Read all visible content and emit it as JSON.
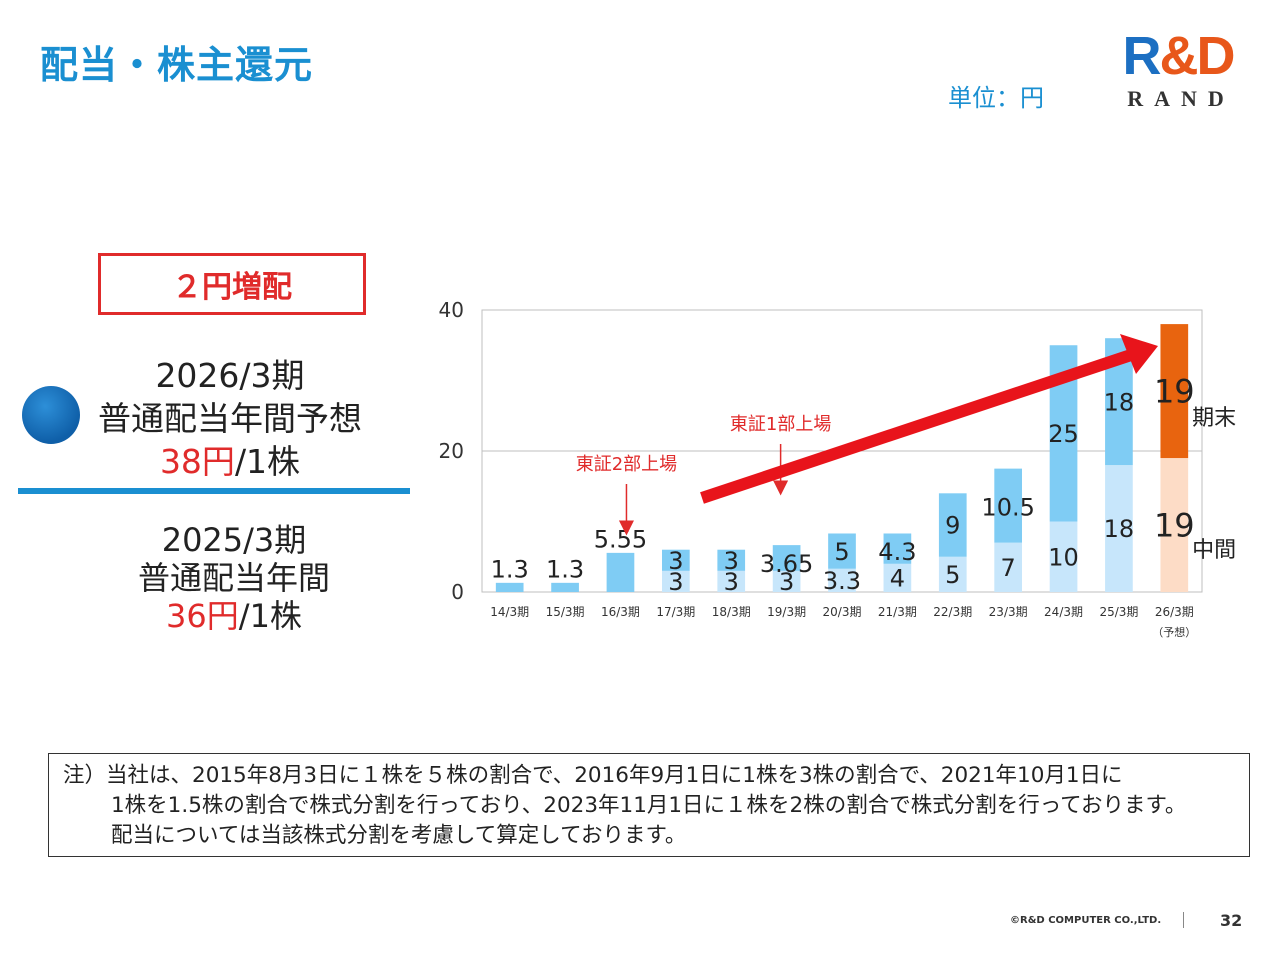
{
  "slide": {
    "title": "配当・株主還元",
    "unit": "単位：円",
    "page_number": "32",
    "copyright": "©R&D COMPUTER CO.,LTD."
  },
  "logo": {
    "text_r": "R",
    "text_amp": "&",
    "text_d": "D",
    "subtext": "RAND"
  },
  "highlight": {
    "badge": "２円増配",
    "forecast_period": "2026/3期",
    "forecast_label": "普通配当年間予想",
    "forecast_value": "38円",
    "forecast_per": "/1株",
    "prev_period": "2025/3期",
    "prev_label": "普通配当年間",
    "prev_value": "36円",
    "prev_per": "/1株"
  },
  "note": {
    "prefix": "注）",
    "line1": "当社は、2015年8月3日に１株を５株の割合で、2016年9月1日に1株を3株の割合で、2021年10月1日に",
    "line2": "1株を1.5株の割合で株式分割を行っており、2023年11月1日に１株を2株の割合で株式分割を行っております。",
    "line3": "配当については当該株式分割を考慮して算定しております。"
  },
  "chart_data": {
    "type": "bar",
    "stacked": true,
    "ylim": [
      0,
      40
    ],
    "yticks": [
      0,
      20,
      40
    ],
    "grid": true,
    "categories": [
      "14/3期",
      "15/3期",
      "16/3期",
      "17/3期",
      "18/3期",
      "19/3期",
      "20/3期",
      "21/3期",
      "22/3期",
      "23/3期",
      "24/3期",
      "25/3期",
      "26/3期"
    ],
    "category_sublabels": [
      "",
      "",
      "",
      "",
      "",
      "",
      "",
      "",
      "",
      "",
      "",
      "",
      "（予想）"
    ],
    "series": [
      {
        "name": "中間",
        "values": [
          null,
          null,
          null,
          3,
          3,
          3,
          3.3,
          4,
          5,
          7,
          10,
          18,
          19
        ],
        "labels": [
          "",
          "",
          "",
          "3",
          "3",
          "3",
          "3.3",
          "4",
          "5",
          "7",
          "10",
          "18",
          "19"
        ]
      },
      {
        "name": "期末",
        "values": [
          1.3,
          1.3,
          5.55,
          3,
          3,
          3.65,
          5,
          4.3,
          9,
          10.5,
          25,
          18,
          19
        ],
        "labels": [
          "1.3",
          "1.3",
          "5.55",
          "3",
          "3",
          "3.65",
          "5",
          "4.3",
          "9",
          "10.5",
          "25",
          "18",
          "19"
        ]
      }
    ],
    "colors": {
      "interim": "#c7e6fb",
      "yearend": "#7fccf4",
      "forecast_interim": "#fddcc6",
      "forecast_yearend": "#e8640f",
      "annotation": "#e02b2b"
    },
    "annotations": [
      {
        "text": "東証2部上場",
        "category_index": 2
      },
      {
        "text": "東証1部上場",
        "category_index": 5
      }
    ]
  }
}
